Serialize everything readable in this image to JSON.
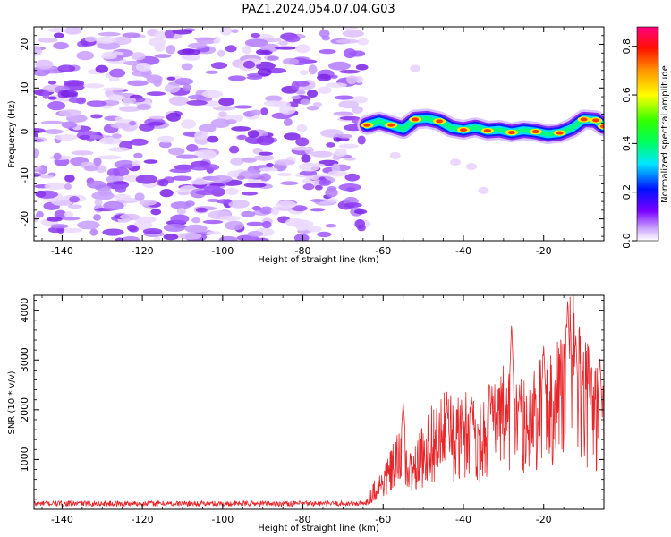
{
  "title": "PAZ1.2024.054.07.04.G03",
  "chart_data": [
    {
      "type": "heatmap",
      "xlabel": "Height of straight line (km)",
      "ylabel": "Frequency (Hz)",
      "xlim": [
        -147,
        -5
      ],
      "ylim": [
        -25,
        24
      ],
      "xticks": [
        -140,
        -120,
        -100,
        -80,
        -60,
        -40,
        -20
      ],
      "yticks": [
        -20,
        -10,
        0,
        10,
        20
      ],
      "noise_region_x": [
        -147,
        -65
      ],
      "signal_ridge": {
        "x": [
          -64,
          -61,
          -58,
          -55,
          -52,
          -49,
          -46,
          -43,
          -40,
          -37,
          -34,
          -31,
          -28,
          -25,
          -22,
          -19,
          -16,
          -13,
          -10,
          -7,
          -5
        ],
        "freq": [
          1.5,
          2.3,
          1.5,
          0.6,
          2.8,
          3.0,
          2.4,
          0.9,
          0.4,
          1.0,
          0.2,
          0.4,
          -0.2,
          0.3,
          0.0,
          -0.6,
          -0.3,
          0.8,
          2.8,
          2.6,
          1.2
        ]
      },
      "colorbar": {
        "label": "Normalized spectral amplitude",
        "range": [
          0.0,
          0.88
        ],
        "ticks": [
          0.0,
          0.2,
          0.4,
          0.6,
          0.8
        ]
      }
    },
    {
      "type": "line",
      "xlabel": "Height of straight line (km)",
      "ylabel": "SNR (10 * v/v)",
      "xlim": [
        -147,
        -5
      ],
      "ylim": [
        0,
        4300
      ],
      "xticks": [
        -140,
        -120,
        -100,
        -80,
        -60,
        -40,
        -20
      ],
      "yticks": [
        1000,
        2000,
        3000,
        4000
      ],
      "color": "#e8262a",
      "envelope": {
        "x": [
          -147,
          -65,
          -64,
          -62,
          -60,
          -58,
          -56,
          -54,
          -52,
          -50,
          -48,
          -46,
          -44,
          -42,
          -40,
          -38,
          -36,
          -34,
          -32,
          -30,
          -28,
          -26,
          -24,
          -22,
          -20,
          -18,
          -16,
          -14,
          -13,
          -12,
          -10,
          -8,
          -6,
          -5
        ],
        "y": [
          110,
          110,
          200,
          450,
          600,
          850,
          1100,
          800,
          900,
          1200,
          1500,
          1500,
          1700,
          1500,
          1700,
          1700,
          1500,
          1800,
          1800,
          2000,
          2100,
          1800,
          1900,
          2000,
          2200,
          2400,
          2600,
          2800,
          3300,
          2700,
          2400,
          2200,
          2000,
          1800
        ]
      },
      "peaks": [
        {
          "x": -55,
          "y": 2150
        },
        {
          "x": -44,
          "y": 2000
        },
        {
          "x": -38,
          "y": 2300
        },
        {
          "x": -33,
          "y": 2150
        },
        {
          "x": -28,
          "y": 3750
        },
        {
          "x": -26,
          "y": 2400
        },
        {
          "x": -20,
          "y": 3300
        },
        {
          "x": -14,
          "y": 4250
        },
        {
          "x": -12,
          "y": 3500
        },
        {
          "x": -6,
          "y": 3050
        }
      ]
    }
  ]
}
